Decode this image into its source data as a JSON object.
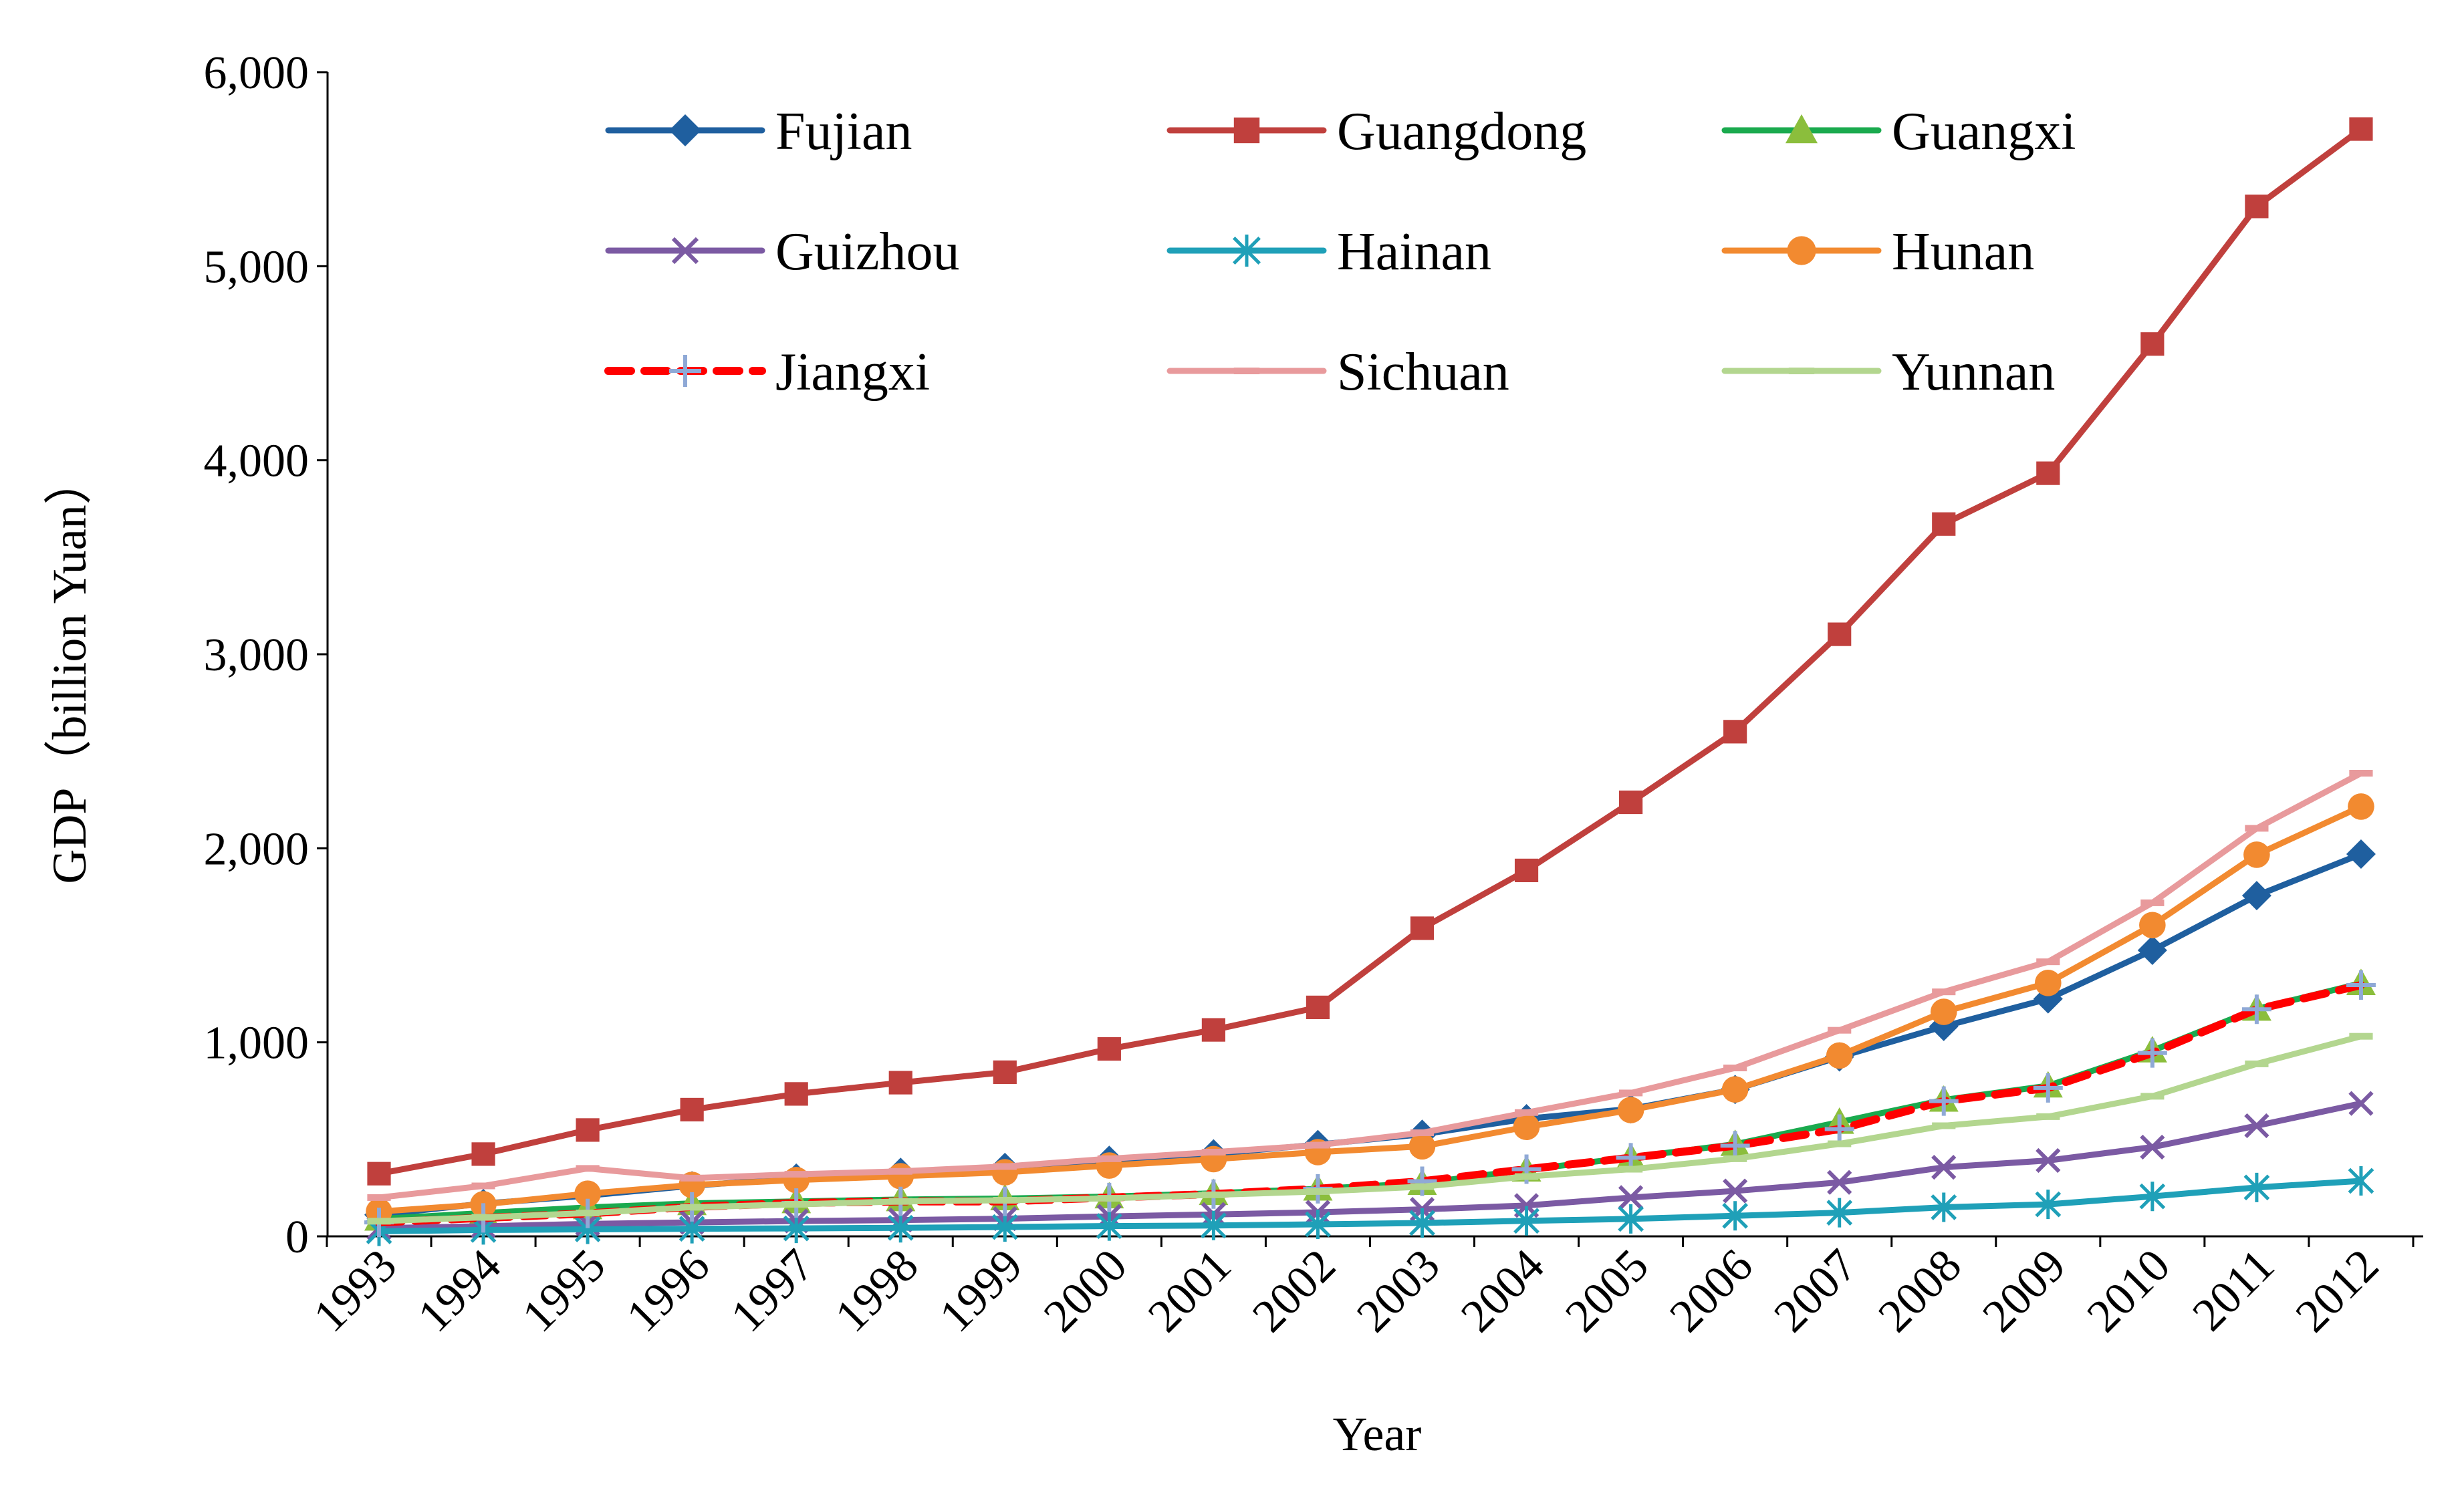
{
  "chart_data": {
    "type": "line",
    "title": "",
    "xlabel": "Year",
    "ylabel": "GDP（billion Yuan）",
    "ylim": [
      0,
      6000
    ],
    "yticks": [
      0,
      1000,
      2000,
      3000,
      4000,
      5000,
      6000
    ],
    "ytick_labels": [
      "0",
      "1,000",
      "2,000",
      "3,000",
      "4,000",
      "5,000",
      "6,000"
    ],
    "grid": false,
    "legend_position": "top",
    "categories": [
      "1993",
      "1994",
      "1995",
      "1996",
      "1997",
      "1998",
      "1999",
      "2000",
      "2001",
      "2002",
      "2003",
      "2004",
      "2005",
      "2006",
      "2007",
      "2008",
      "2009",
      "2010",
      "2011",
      "2012"
    ],
    "series": [
      {
        "name": "Fujian",
        "color": "#1F5F9F",
        "marker": "diamond",
        "dash": false,
        "values": [
          111,
          169,
          210,
          261,
          300,
          330,
          355,
          392,
          425,
          473,
          526,
          606,
          657,
          757,
          925,
          1082,
          1224,
          1474,
          1756,
          1970
        ]
      },
      {
        "name": "Guangdong",
        "color": "#C0403D",
        "marker": "square",
        "dash": false,
        "values": [
          323,
          424,
          548,
          653,
          734,
          792,
          846,
          966,
          1064,
          1180,
          1588,
          1886,
          2237,
          2601,
          3103,
          3671,
          3933,
          4599,
          5308,
          5707
        ]
      },
      {
        "name": "Guangxi",
        "color": "#1AAA4E",
        "marker": "triangle",
        "markerColor": "#8BBE3C",
        "dash": false,
        "values": [
          90,
          120,
          149,
          170,
          180,
          190,
          195,
          205,
          222,
          245,
          274,
          343,
          407,
          475,
          589,
          703,
          776,
          957,
          1172,
          1304
        ]
      },
      {
        "name": "Guizhou",
        "color": "#7B5AA3",
        "marker": "x",
        "dash": false,
        "values": [
          42,
          52,
          64,
          72,
          79,
          84,
          91,
          103,
          113,
          124,
          139,
          159,
          200,
          234,
          278,
          356,
          391,
          460,
          570,
          685
        ]
      },
      {
        "name": "Hainan",
        "color": "#1FA0B8",
        "marker": "star",
        "dash": false,
        "values": [
          26,
          33,
          36,
          39,
          41,
          44,
          48,
          53,
          56,
          62,
          69,
          80,
          90,
          106,
          122,
          150,
          165,
          206,
          252,
          286
        ]
      },
      {
        "name": "Hunan",
        "color": "#F28A30",
        "marker": "circle",
        "dash": false,
        "values": [
          128,
          165,
          220,
          265,
          290,
          310,
          330,
          365,
          398,
          434,
          464,
          564,
          651,
          757,
          932,
          1157,
          1306,
          1604,
          1967,
          2215
        ]
      },
      {
        "name": "Jiangxi",
        "color": "#FF0000",
        "marker": "plus",
        "markerColor": "#8FA9D6",
        "dash": true,
        "values": [
          72,
          95,
          118,
          152,
          172,
          180,
          180,
          200,
          218,
          245,
          284,
          346,
          405,
          467,
          553,
          697,
          765,
          945,
          1170,
          1295
        ]
      },
      {
        "name": "Sichuan",
        "color": "#E89A9C",
        "marker": "dash",
        "dash": false,
        "values": [
          200,
          260,
          350,
          300,
          320,
          335,
          360,
          400,
          434,
          470,
          534,
          638,
          739,
          868,
          1062,
          1260,
          1415,
          1719,
          2103,
          2387
        ]
      },
      {
        "name": "Yunnan",
        "color": "#B3D68F",
        "marker": "dash",
        "dash": false,
        "values": [
          78,
          98,
          120,
          150,
          165,
          180,
          186,
          196,
          214,
          231,
          256,
          308,
          346,
          400,
          477,
          570,
          617,
          722,
          889,
          1031
        ]
      }
    ]
  }
}
